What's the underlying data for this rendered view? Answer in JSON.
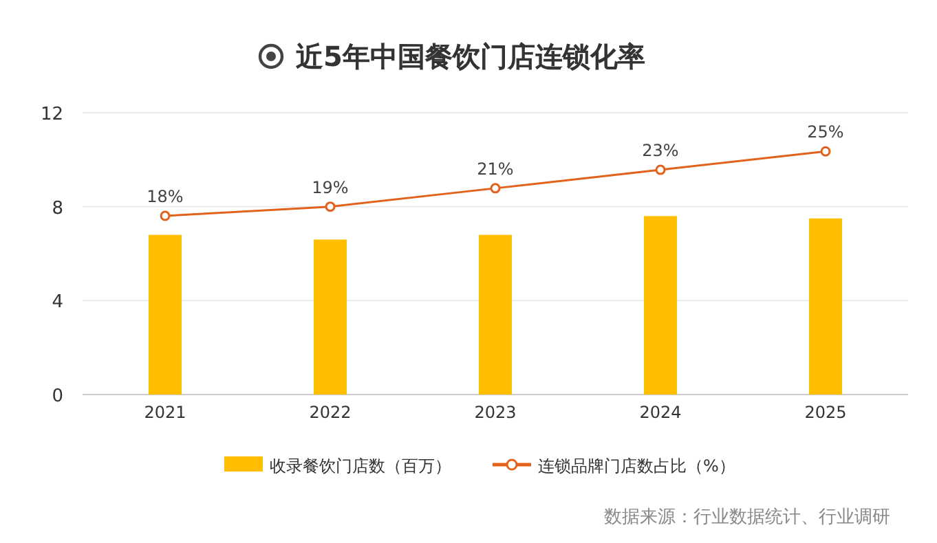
{
  "chart_data": {
    "type": "bar",
    "title": "近5年中国餐饮门店连锁化率",
    "categories": [
      "2021",
      "2022",
      "2023",
      "2024",
      "2025"
    ],
    "series": [
      {
        "name": "收录餐饮门店数（百万）",
        "color": "#ffbf00",
        "values": [
          6.8,
          6.6,
          6.8,
          7.6,
          7.5
        ]
      },
      {
        "name": "连锁品牌门店数占比（%）",
        "type": "line",
        "axis": "y2",
        "color": "#e2621b",
        "values": [
          18,
          19,
          21,
          23,
          25
        ],
        "value_labels": [
          "18%",
          "19%",
          "21%",
          "23%",
          "25%"
        ]
      }
    ],
    "ylim": [
      0,
      12
    ],
    "yticks": [
      0,
      4,
      8,
      12
    ],
    "y2lim": [
      -1.4,
      29.2
    ],
    "tick_labels": "xy",
    "grid": "y",
    "legend": "bottom",
    "marker": "circle",
    "line_style": "solid",
    "annotations": [
      "数据来源：行业数据统计、行业调研"
    ]
  }
}
